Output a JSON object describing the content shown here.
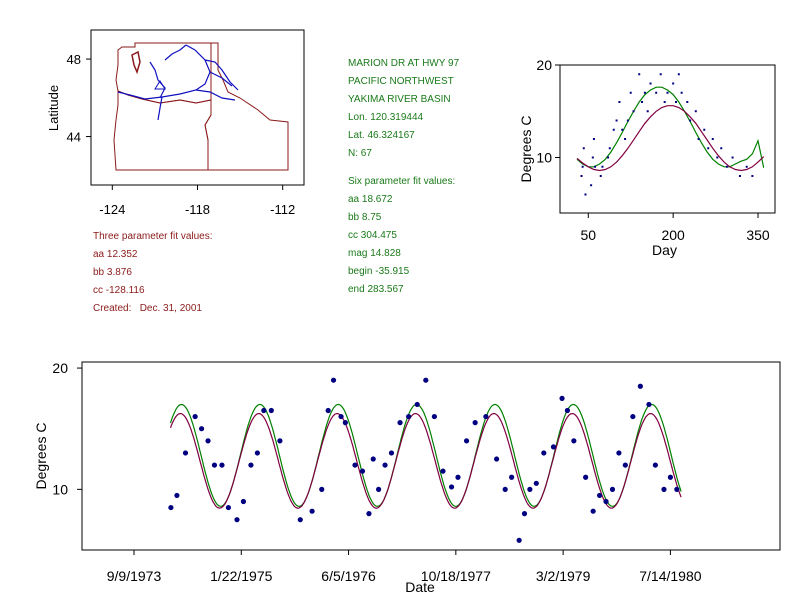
{
  "station": {
    "name": "MARION DR AT HWY 97",
    "region": "PACIFIC NORTHWEST",
    "basin": "YAKIMA RIVER BASIN",
    "lon": "Lon. 120.319444",
    "lat": "Lat. 46.324167",
    "n": "N: 67"
  },
  "six_param": {
    "heading": "Six parameter fit values:",
    "aa": "aa 18.672",
    "bb": "bb 8.75",
    "cc": "cc 304.475",
    "mag": "mag 14.828",
    "begin": "begin -35.915",
    "end": "end 283.567"
  },
  "three_param": {
    "heading": "Three parameter fit values:",
    "aa": "aa 12.352",
    "bb": "bb 3.876",
    "cc": "cc -128.116",
    "created": "Created:   Dec. 31, 2001"
  },
  "map": {
    "ylabel": "Latitude",
    "xticks": [
      "-124",
      "-118",
      "-112"
    ],
    "yticks": [
      "48",
      "44"
    ],
    "xtick_values": [
      -124,
      -118,
      -112
    ],
    "ytick_values": [
      48,
      44
    ],
    "xlim": [
      -125.5,
      -110.5
    ],
    "ylim": [
      41.5,
      49.5
    ],
    "border_color": "#8b1a1a",
    "river_color": "#1010c0"
  },
  "colors": {
    "green": "#1a7a1a",
    "red": "#8b1a1a",
    "points": "#000080",
    "fit6": "#008000",
    "fit3": "#800040"
  },
  "chart_data": [
    {
      "type": "scatter",
      "title": "",
      "xlabel": "Day",
      "ylabel": "Degrees C",
      "xlim": [
        0,
        380
      ],
      "ylim": [
        4,
        20
      ],
      "xticks": [
        50,
        200,
        350
      ],
      "yticks": [
        10,
        20
      ],
      "xtick_labels": [
        "50",
        "200",
        "350"
      ],
      "ytick_labels": [
        "10",
        "20"
      ],
      "points": [
        [
          38,
          8
        ],
        [
          40,
          9
        ],
        [
          42,
          11
        ],
        [
          45,
          6
        ],
        [
          55,
          7
        ],
        [
          58,
          10
        ],
        [
          60,
          12
        ],
        [
          62,
          9
        ],
        [
          72,
          8
        ],
        [
          75,
          9
        ],
        [
          85,
          10
        ],
        [
          88,
          11
        ],
        [
          95,
          13
        ],
        [
          100,
          14
        ],
        [
          105,
          16
        ],
        [
          110,
          13
        ],
        [
          115,
          12
        ],
        [
          120,
          14
        ],
        [
          125,
          17
        ],
        [
          130,
          15
        ],
        [
          140,
          19
        ],
        [
          145,
          16
        ],
        [
          150,
          17
        ],
        [
          155,
          15
        ],
        [
          160,
          18
        ],
        [
          170,
          17
        ],
        [
          178,
          19
        ],
        [
          185,
          16
        ],
        [
          190,
          17
        ],
        [
          200,
          18
        ],
        [
          205,
          16
        ],
        [
          210,
          19
        ],
        [
          215,
          17
        ],
        [
          225,
          16
        ],
        [
          230,
          14
        ],
        [
          240,
          15
        ],
        [
          245,
          12
        ],
        [
          255,
          13
        ],
        [
          262,
          11
        ],
        [
          270,
          12
        ],
        [
          278,
          10
        ],
        [
          285,
          11
        ],
        [
          295,
          9
        ],
        [
          305,
          10
        ],
        [
          318,
          8
        ],
        [
          330,
          9
        ],
        [
          340,
          8
        ]
      ],
      "series": [
        {
          "name": "Six parameter fit",
          "color": "#008000",
          "x": [
            30,
            40,
            50,
            60,
            70,
            80,
            90,
            100,
            110,
            120,
            130,
            140,
            150,
            160,
            170,
            180,
            190,
            200,
            210,
            220,
            230,
            240,
            250,
            260,
            270,
            280,
            290,
            300,
            310,
            320,
            330,
            340,
            350,
            360
          ],
          "y": [
            9.8,
            9.3,
            9.0,
            9.0,
            9.3,
            9.8,
            10.6,
            11.6,
            12.7,
            13.9,
            15.0,
            16.0,
            16.8,
            17.3,
            17.6,
            17.6,
            17.3,
            16.8,
            16.0,
            15.0,
            13.9,
            12.7,
            11.6,
            10.6,
            9.8,
            9.3,
            9.0,
            9.0,
            9.3,
            9.6,
            9.8,
            10.4,
            11.8,
            8.9
          ]
        },
        {
          "name": "Three parameter fit",
          "color": "#800040",
          "x": [
            30,
            40,
            50,
            60,
            70,
            80,
            90,
            100,
            110,
            120,
            130,
            140,
            150,
            160,
            170,
            180,
            190,
            200,
            210,
            220,
            230,
            240,
            250,
            260,
            270,
            280,
            290,
            300,
            310,
            320,
            330,
            340,
            350,
            360
          ],
          "y": [
            9.9,
            9.4,
            9.0,
            8.7,
            8.6,
            8.7,
            9.0,
            9.5,
            10.2,
            11.0,
            11.9,
            12.8,
            13.7,
            14.4,
            15.0,
            15.4,
            15.6,
            15.6,
            15.4,
            15.0,
            14.4,
            13.7,
            12.8,
            11.9,
            11.0,
            10.2,
            9.5,
            9.0,
            8.7,
            8.6,
            8.7,
            9.0,
            9.5,
            10.1
          ]
        }
      ]
    },
    {
      "type": "scatter",
      "title": "",
      "xlabel": "Date",
      "ylabel": "Degrees C",
      "xlim": [
        0,
        2610
      ],
      "ylim": [
        5,
        20.5
      ],
      "xticks": [
        0,
        500,
        1000,
        1500,
        2000,
        2500
      ],
      "xtick_labels": [
        "9/9/1973",
        "1/22/1975",
        "6/5/1976",
        "10/18/1977",
        "3/2/1979",
        "7/14/1980"
      ],
      "yticks": [
        10,
        20
      ],
      "ytick_labels": [
        "10",
        "20"
      ],
      "points": [
        [
          172,
          8.5
        ],
        [
          200,
          9.5
        ],
        [
          240,
          13
        ],
        [
          285,
          16
        ],
        [
          315,
          15
        ],
        [
          345,
          14
        ],
        [
          375,
          12
        ],
        [
          410,
          12
        ],
        [
          440,
          8.5
        ],
        [
          480,
          7.5
        ],
        [
          510,
          9
        ],
        [
          545,
          12
        ],
        [
          575,
          13
        ],
        [
          605,
          16.5
        ],
        [
          640,
          16.5
        ],
        [
          680,
          14
        ],
        [
          775,
          7.5
        ],
        [
          830,
          8.2
        ],
        [
          875,
          10
        ],
        [
          905,
          16.5
        ],
        [
          930,
          19
        ],
        [
          965,
          16
        ],
        [
          985,
          15.5
        ],
        [
          1030,
          12
        ],
        [
          1065,
          11.5
        ],
        [
          1095,
          8
        ],
        [
          1115,
          12.5
        ],
        [
          1140,
          10
        ],
        [
          1170,
          12
        ],
        [
          1200,
          13
        ],
        [
          1240,
          15.5
        ],
        [
          1280,
          16
        ],
        [
          1320,
          17
        ],
        [
          1360,
          19
        ],
        [
          1400,
          16
        ],
        [
          1440,
          11.5
        ],
        [
          1480,
          10.2
        ],
        [
          1510,
          11
        ],
        [
          1550,
          14
        ],
        [
          1590,
          15.5
        ],
        [
          1640,
          16
        ],
        [
          1690,
          12.5
        ],
        [
          1730,
          10
        ],
        [
          1760,
          11
        ],
        [
          1795,
          5.8
        ],
        [
          1820,
          8
        ],
        [
          1845,
          10
        ],
        [
          1875,
          10.5
        ],
        [
          1910,
          13
        ],
        [
          1955,
          13.5
        ],
        [
          1995,
          17.5
        ],
        [
          2020,
          16.5
        ],
        [
          2050,
          14
        ],
        [
          2105,
          11
        ],
        [
          2140,
          8.2
        ],
        [
          2170,
          9.5
        ],
        [
          2200,
          9
        ],
        [
          2230,
          10
        ],
        [
          2260,
          13
        ],
        [
          2290,
          12
        ],
        [
          2325,
          16
        ],
        [
          2360,
          18.5
        ],
        [
          2400,
          17
        ],
        [
          2430,
          12
        ],
        [
          2470,
          10
        ],
        [
          2500,
          11
        ],
        [
          2530,
          10
        ]
      ],
      "series": [
        {
          "name": "Six parameter fit",
          "color": "#008000"
        },
        {
          "name": "Three parameter fit",
          "color": "#800040"
        }
      ]
    }
  ]
}
